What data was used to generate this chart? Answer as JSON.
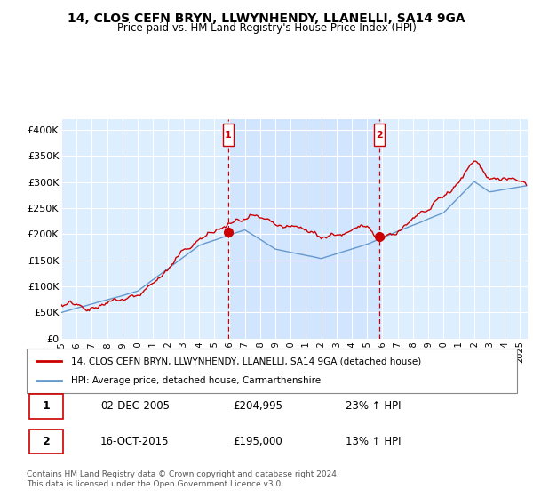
{
  "title": "14, CLOS CEFN BRYN, LLWYNHENDY, LLANELLI, SA14 9GA",
  "subtitle": "Price paid vs. HM Land Registry's House Price Index (HPI)",
  "ylabel_ticks": [
    "£0",
    "£50K",
    "£100K",
    "£150K",
    "£200K",
    "£250K",
    "£300K",
    "£350K",
    "£400K"
  ],
  "ytick_values": [
    0,
    50000,
    100000,
    150000,
    200000,
    250000,
    300000,
    350000,
    400000
  ],
  "ylim": [
    0,
    420000
  ],
  "xlim_start": 1995.0,
  "xlim_end": 2025.5,
  "xticks": [
    1995,
    1996,
    1997,
    1998,
    1999,
    2000,
    2001,
    2002,
    2003,
    2004,
    2005,
    2006,
    2007,
    2008,
    2009,
    2010,
    2011,
    2012,
    2013,
    2014,
    2015,
    2016,
    2017,
    2018,
    2019,
    2020,
    2021,
    2022,
    2023,
    2024,
    2025
  ],
  "legend_line1": "14, CLOS CEFN BRYN, LLWYNHENDY, LLANELLI, SA14 9GA (detached house)",
  "legend_line2": "HPI: Average price, detached house, Carmarthenshire",
  "transaction1_label": "1",
  "transaction1_date": "02-DEC-2005",
  "transaction1_price": "£204,995",
  "transaction1_hpi": "23% ↑ HPI",
  "transaction2_label": "2",
  "transaction2_date": "16-OCT-2015",
  "transaction2_price": "£195,000",
  "transaction2_hpi": "13% ↑ HPI",
  "footer": "Contains HM Land Registry data © Crown copyright and database right 2024.\nThis data is licensed under the Open Government Licence v3.0.",
  "red_color": "#cc0000",
  "blue_color": "#6699cc",
  "bg_color": "#ddeeff",
  "shade_color": "#cce0ff",
  "vline1_x": 2005.92,
  "vline2_x": 2015.79,
  "marker1_x": 2005.92,
  "marker1_y": 204995,
  "marker2_x": 2015.79,
  "marker2_y": 195000
}
